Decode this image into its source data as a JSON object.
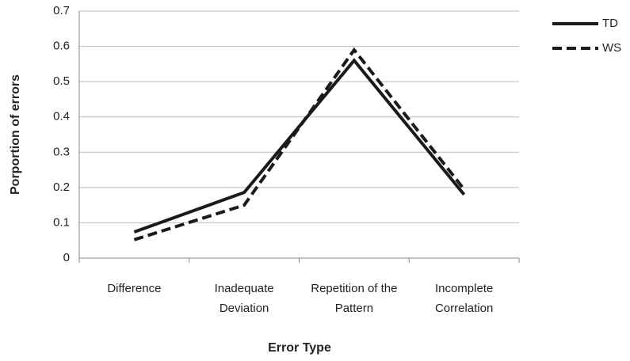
{
  "chart_data": {
    "type": "line",
    "categories": [
      "Difference",
      "Inadequate Deviation",
      "Repetition of the Pattern",
      "Incomplete Correlation"
    ],
    "series": [
      {
        "name": "TD",
        "color": "#1a1a1a",
        "dash": "solid",
        "values": [
          0.074,
          0.186,
          0.56,
          0.18
        ]
      },
      {
        "name": "WS",
        "color": "#1a1a1a",
        "dash": "dashed",
        "values": [
          0.052,
          0.15,
          0.59,
          0.195
        ]
      }
    ],
    "x_label": "Error Type",
    "y_label": "Porportion of errors",
    "ylim": [
      0,
      0.7
    ],
    "yticks": [
      0,
      0.1,
      0.2,
      0.3,
      0.4,
      0.5,
      0.6,
      0.7
    ],
    "grid": true,
    "legend": "right"
  }
}
